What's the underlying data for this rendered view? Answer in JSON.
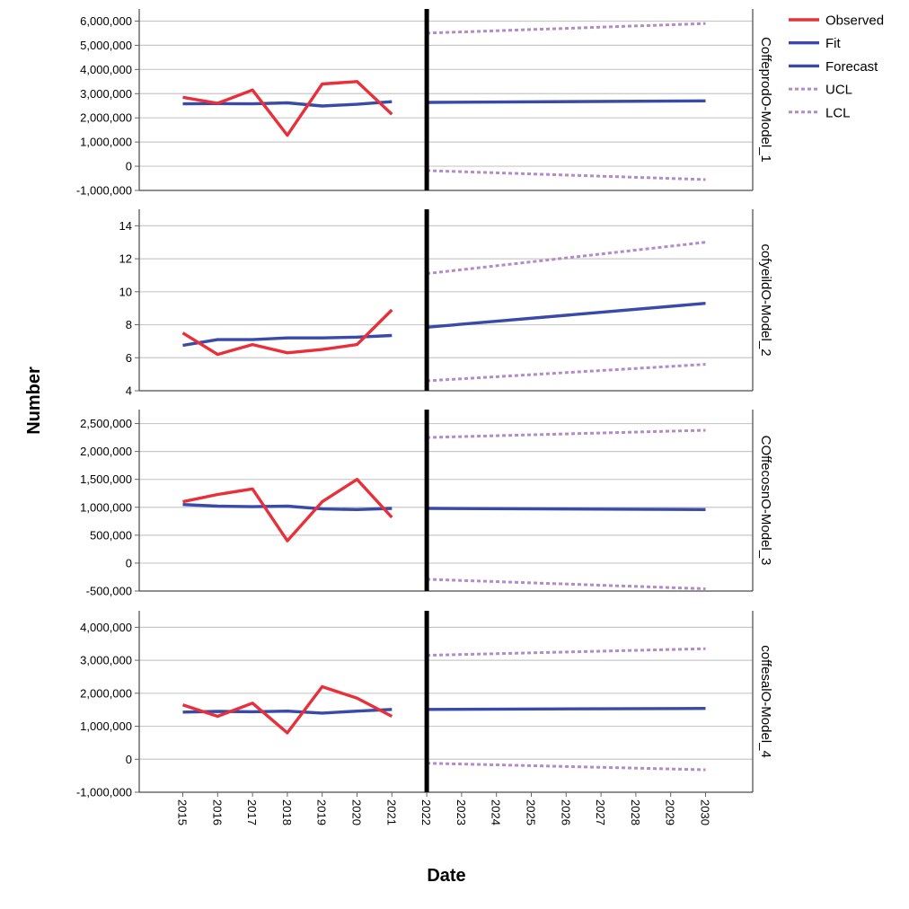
{
  "chart_data": {
    "type": "line",
    "xlabel": "Date",
    "ylabel": "Number",
    "x": [
      "2015",
      "2016",
      "2017",
      "2018",
      "2019",
      "2020",
      "2021",
      "2022",
      "2023",
      "2024",
      "2025",
      "2026",
      "2027",
      "2028",
      "2029",
      "2030"
    ],
    "forecast_start": "2022",
    "legend": {
      "position": "top-right",
      "items": [
        {
          "name": "Observed",
          "color": "#e8303a",
          "style": "solid"
        },
        {
          "name": "Fit",
          "color": "#3a4aa8",
          "style": "solid"
        },
        {
          "name": "Forecast",
          "color": "#3a4aa8",
          "style": "solid"
        },
        {
          "name": "UCL",
          "color": "#b48ac8",
          "style": "dashed"
        },
        {
          "name": "LCL",
          "color": "#b48ac8",
          "style": "dashed"
        }
      ]
    },
    "panels": [
      {
        "label": "CoffeprodO-Model_1",
        "ylim": [
          -1000000,
          6500000
        ],
        "ticks": [
          -1000000,
          0,
          1000000,
          2000000,
          3000000,
          4000000,
          5000000,
          6000000
        ],
        "tick_labels": [
          "-1,000,000",
          "0",
          "1,000,000",
          "2,000,000",
          "3,000,000",
          "4,000,000",
          "5,000,000",
          "6,000,000"
        ],
        "observed": {
          "x": [
            "2015",
            "2016",
            "2017",
            "2018",
            "2019",
            "2020",
            "2021"
          ],
          "y": [
            2850000,
            2600000,
            3150000,
            1280000,
            3400000,
            3500000,
            2150000
          ]
        },
        "fit": {
          "x": [
            "2015",
            "2016",
            "2017",
            "2018",
            "2019",
            "2020",
            "2021"
          ],
          "y": [
            2580000,
            2590000,
            2580000,
            2620000,
            2490000,
            2560000,
            2670000
          ]
        },
        "forecast": {
          "x": [
            "2022",
            "2030"
          ],
          "y": [
            2640000,
            2700000
          ]
        },
        "ucl": {
          "x": [
            "2022",
            "2030"
          ],
          "y": [
            5500000,
            5900000
          ]
        },
        "lcl": {
          "x": [
            "2022",
            "2030"
          ],
          "y": [
            -180000,
            -550000
          ]
        }
      },
      {
        "label": "cofyeildO-Model_2",
        "ylim": [
          4,
          15
        ],
        "ticks": [
          4,
          6,
          8,
          10,
          12,
          14
        ],
        "tick_labels": [
          "4",
          "6",
          "8",
          "10",
          "12",
          "14"
        ],
        "observed": {
          "x": [
            "2015",
            "2016",
            "2017",
            "2018",
            "2019",
            "2020",
            "2021"
          ],
          "y": [
            7.5,
            6.2,
            6.8,
            6.3,
            6.5,
            6.8,
            8.9
          ]
        },
        "fit": {
          "x": [
            "2015",
            "2016",
            "2017",
            "2018",
            "2019",
            "2020",
            "2021"
          ],
          "y": [
            6.75,
            7.1,
            7.1,
            7.2,
            7.2,
            7.25,
            7.35
          ]
        },
        "forecast": {
          "x": [
            "2022",
            "2030"
          ],
          "y": [
            7.85,
            9.3
          ]
        },
        "ucl": {
          "x": [
            "2022",
            "2030"
          ],
          "y": [
            11.1,
            13.0
          ]
        },
        "lcl": {
          "x": [
            "2022",
            "2030"
          ],
          "y": [
            4.6,
            5.6
          ]
        }
      },
      {
        "label": "COffecosnO-Model_3",
        "ylim": [
          -500000,
          2750000
        ],
        "ticks": [
          -500000,
          0,
          500000,
          1000000,
          1500000,
          2000000,
          2500000
        ],
        "tick_labels": [
          "-500,000",
          "0",
          "500,000",
          "1,000,000",
          "1,500,000",
          "2,000,000",
          "2,500,000"
        ],
        "observed": {
          "x": [
            "2015",
            "2016",
            "2017",
            "2018",
            "2019",
            "2020",
            "2021"
          ],
          "y": [
            1100000,
            1230000,
            1330000,
            400000,
            1100000,
            1500000,
            820000
          ]
        },
        "fit": {
          "x": [
            "2015",
            "2016",
            "2017",
            "2018",
            "2019",
            "2020",
            "2021"
          ],
          "y": [
            1050000,
            1020000,
            1010000,
            1020000,
            970000,
            960000,
            980000
          ]
        },
        "forecast": {
          "x": [
            "2022",
            "2030"
          ],
          "y": [
            980000,
            960000
          ]
        },
        "ucl": {
          "x": [
            "2022",
            "2030"
          ],
          "y": [
            2250000,
            2380000
          ]
        },
        "lcl": {
          "x": [
            "2022",
            "2030"
          ],
          "y": [
            -290000,
            -460000
          ]
        }
      },
      {
        "label": "coffesalO-Model_4",
        "ylim": [
          -1000000,
          4500000
        ],
        "ticks": [
          -1000000,
          0,
          1000000,
          2000000,
          3000000,
          4000000
        ],
        "tick_labels": [
          "-1,000,000",
          "0",
          "1,000,000",
          "2,000,000",
          "3,000,000",
          "4,000,000"
        ],
        "observed": {
          "x": [
            "2015",
            "2016",
            "2017",
            "2018",
            "2019",
            "2020",
            "2021"
          ],
          "y": [
            1650000,
            1300000,
            1700000,
            800000,
            2200000,
            1850000,
            1300000
          ]
        },
        "fit": {
          "x": [
            "2015",
            "2016",
            "2017",
            "2018",
            "2019",
            "2020",
            "2021"
          ],
          "y": [
            1430000,
            1450000,
            1440000,
            1460000,
            1400000,
            1460000,
            1510000
          ]
        },
        "forecast": {
          "x": [
            "2022",
            "2030"
          ],
          "y": [
            1510000,
            1540000
          ]
        },
        "ucl": {
          "x": [
            "2022",
            "2030"
          ],
          "y": [
            3150000,
            3350000
          ]
        },
        "lcl": {
          "x": [
            "2022",
            "2030"
          ],
          "y": [
            -120000,
            -320000
          ]
        }
      }
    ]
  }
}
